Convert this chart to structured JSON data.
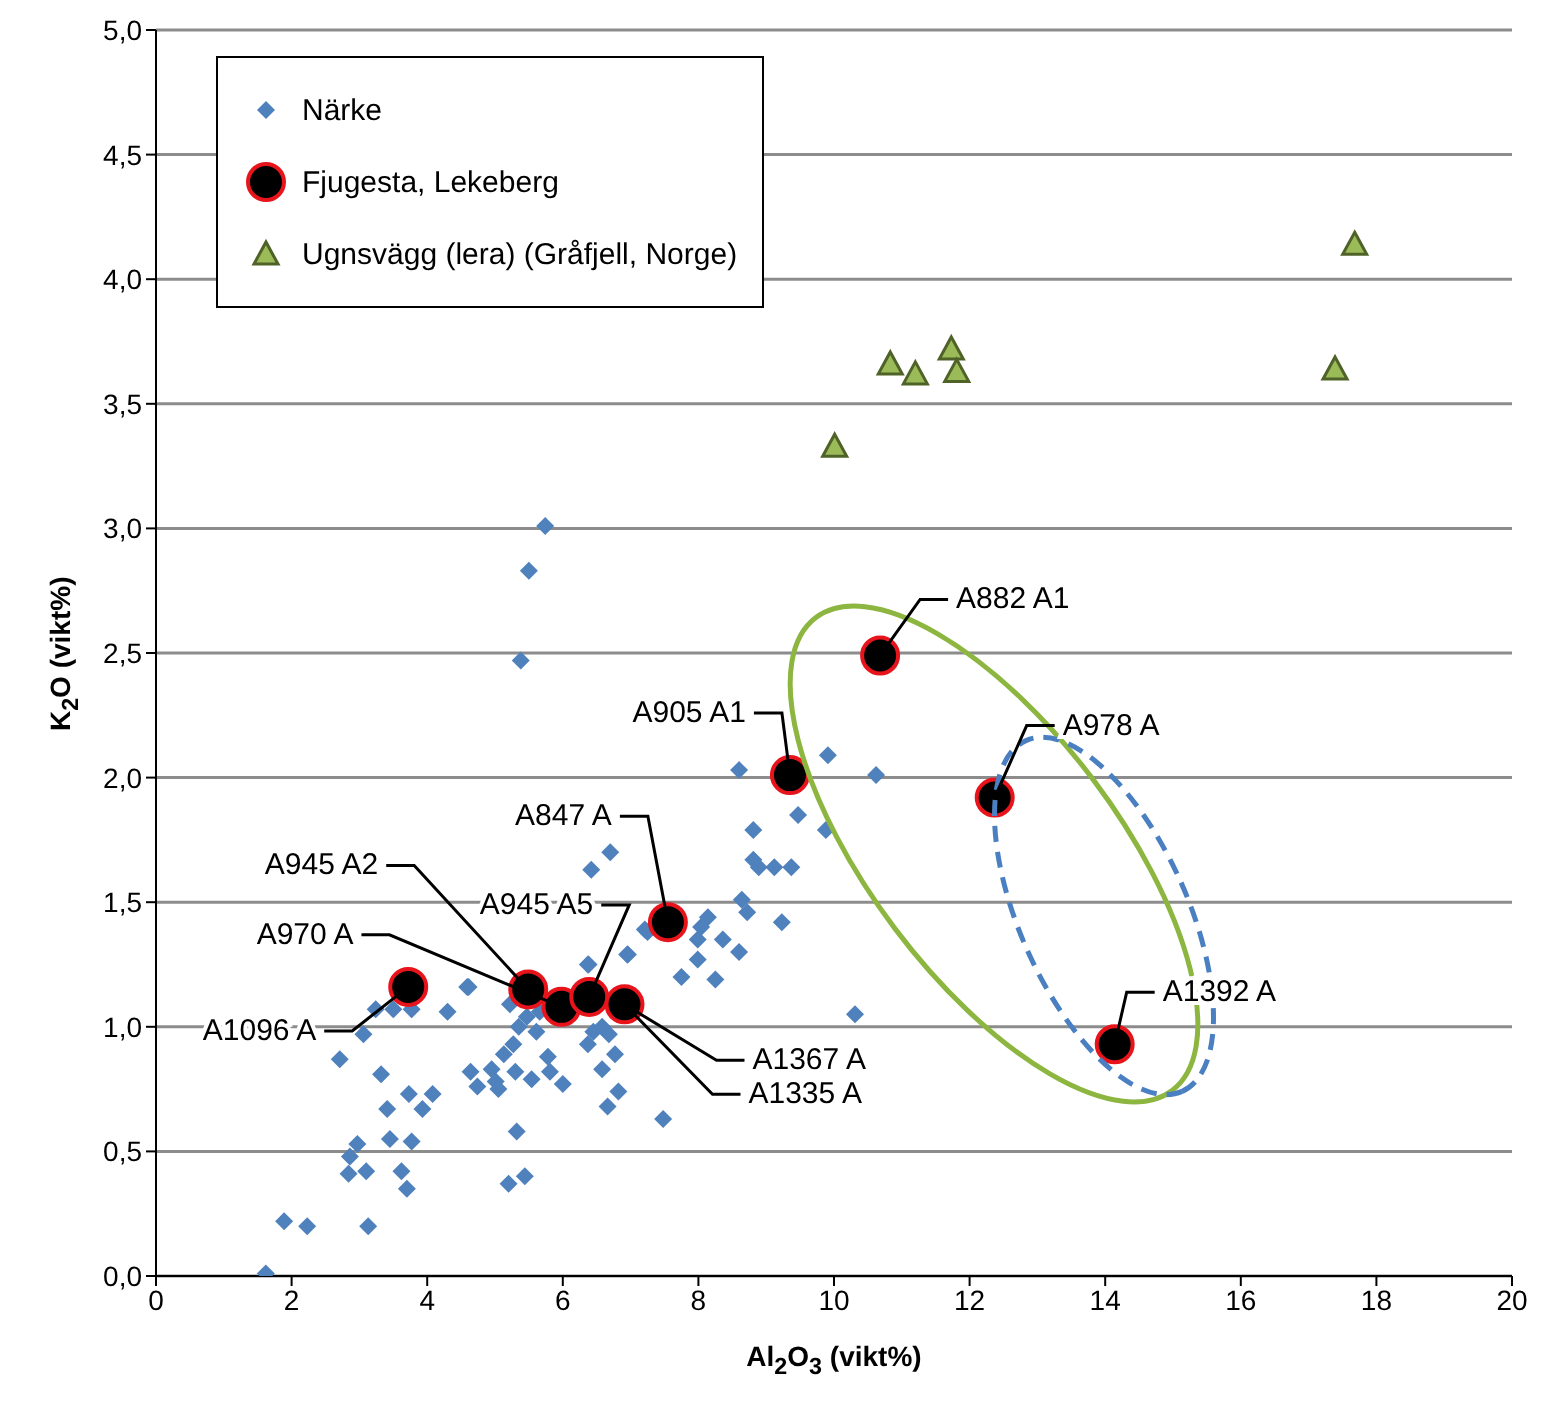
{
  "chart_data": {
    "type": "scatter",
    "xlabel": "Al$_{2}$O$_{3}$ (vikt%)",
    "ylabel": "K$_{2}$O (vikt%)",
    "xlim": [
      0,
      20
    ],
    "xticks": [
      0,
      2,
      4,
      6,
      8,
      10,
      12,
      14,
      16,
      18,
      20
    ],
    "ylim": [
      0,
      5
    ],
    "yticks": [
      {
        "value": 0,
        "label": "0,0"
      },
      {
        "value": 0.5,
        "label": "0,5"
      },
      {
        "value": 1,
        "label": "1,0"
      },
      {
        "value": 1.5,
        "label": "1,5"
      },
      {
        "value": 2,
        "label": "2,0"
      },
      {
        "value": 2.5,
        "label": "2,5"
      },
      {
        "value": 3,
        "label": "3,0"
      },
      {
        "value": 3.5,
        "label": "3,5"
      },
      {
        "value": 4,
        "label": "4,0"
      },
      {
        "value": 4.5,
        "label": "4,5"
      },
      {
        "value": 5,
        "label": "5,0"
      }
    ],
    "grid": "y",
    "legend": "top left",
    "series": [
      {
        "name": "Närke",
        "color": "#4f81bd",
        "marker": "diamond",
        "x": [
          1.62,
          1.89,
          2.23,
          3.13,
          2.71,
          3.06,
          3.32,
          3.24,
          3.5,
          3.77,
          4.3,
          4.61,
          3.73,
          3.93,
          4.08,
          3.41,
          3.45,
          3.77,
          2.97,
          2.86,
          2.84,
          3.1,
          3.62,
          3.7,
          4.64,
          4.74,
          4.95,
          5.01,
          5.05,
          5.13,
          5.3,
          5.27,
          5.54,
          5.78,
          5.81,
          6.0,
          5.32,
          5.2,
          5.44,
          5.35,
          5.47,
          5.61,
          5.66,
          5.22,
          6.37,
          6.37,
          6.45,
          6.58,
          6.68,
          6.77,
          6.58,
          6.82,
          6.66,
          6.95,
          7.21,
          6.42,
          6.7,
          7.48,
          5.74,
          5.5,
          5.38,
          8.6,
          9.91,
          10.62,
          9.47,
          9.88,
          8.81,
          8.81,
          9.12,
          9.37,
          8.89,
          8.64,
          8.72,
          8.14,
          8.04,
          7.99,
          8.36,
          8.6,
          9.23,
          7.99,
          7.75,
          8.25,
          6.96,
          7.25,
          6.38,
          10.31,
          4.59
        ],
        "values": [
          0.01,
          0.22,
          0.2,
          0.2,
          0.87,
          0.97,
          0.81,
          1.07,
          1.07,
          1.07,
          1.06,
          1.16,
          0.73,
          0.67,
          0.73,
          0.67,
          0.55,
          0.54,
          0.53,
          0.48,
          0.41,
          0.42,
          0.42,
          0.35,
          0.82,
          0.76,
          0.83,
          0.78,
          0.75,
          0.89,
          0.82,
          0.93,
          0.79,
          0.88,
          0.82,
          0.77,
          0.58,
          0.37,
          0.4,
          1.0,
          1.04,
          0.98,
          1.06,
          1.09,
          1.25,
          0.93,
          0.98,
          1.0,
          0.97,
          0.89,
          0.83,
          0.74,
          0.68,
          1.29,
          1.39,
          1.63,
          1.7,
          0.63,
          3.01,
          2.83,
          2.47,
          2.03,
          2.09,
          2.01,
          1.85,
          1.79,
          1.79,
          1.67,
          1.64,
          1.64,
          1.64,
          1.51,
          1.46,
          1.44,
          1.4,
          1.35,
          1.35,
          1.3,
          1.42,
          1.27,
          1.2,
          1.19,
          1.29,
          1.38,
          1.25,
          1.05,
          1.16
        ]
      },
      {
        "name": "Fjugesta, Lekeberg",
        "color": "#000000",
        "marker": "circle",
        "x": [
          3.72,
          5.49,
          5.98,
          6.39,
          6.91,
          7.55,
          9.35,
          10.68,
          12.37,
          14.14
        ],
        "values": [
          1.16,
          1.15,
          1.08,
          1.12,
          1.09,
          1.42,
          2.01,
          2.49,
          1.92,
          0.93
        ]
      },
      {
        "name": "Ugnsvägg (lera) (Gråfjell, Norge)",
        "color": "#9bbb59",
        "marker": "triangle",
        "x": [
          10.01,
          10.83,
          11.2,
          11.73,
          11.81,
          17.39,
          17.68
        ],
        "values": [
          3.33,
          3.66,
          3.62,
          3.72,
          3.63,
          3.64,
          4.14
        ]
      }
    ],
    "annotations": [
      {
        "text": "A1096 A",
        "x": 3.72,
        "y": 1.16
      },
      {
        "text": "A945 A2",
        "x": 5.49,
        "y": 1.15
      },
      {
        "text": "A970 A",
        "x": 5.98,
        "y": 1.08
      },
      {
        "text": "A945 A5",
        "x": 6.39,
        "y": 1.12
      },
      {
        "text": "A1335 A",
        "x": 6.91,
        "y": 1.09
      },
      {
        "text": "A1367 A",
        "x": 6.91,
        "y": 1.09
      },
      {
        "text": "A847 A",
        "x": 7.55,
        "y": 1.42
      },
      {
        "text": "A905 A1",
        "x": 9.35,
        "y": 2.01
      },
      {
        "text": "A882 A1",
        "x": 10.68,
        "y": 2.49
      },
      {
        "text": "A978 A",
        "x": 12.37,
        "y": 1.92
      },
      {
        "text": "A1392 A",
        "x": 14.14,
        "y": 0.93
      }
    ]
  }
}
